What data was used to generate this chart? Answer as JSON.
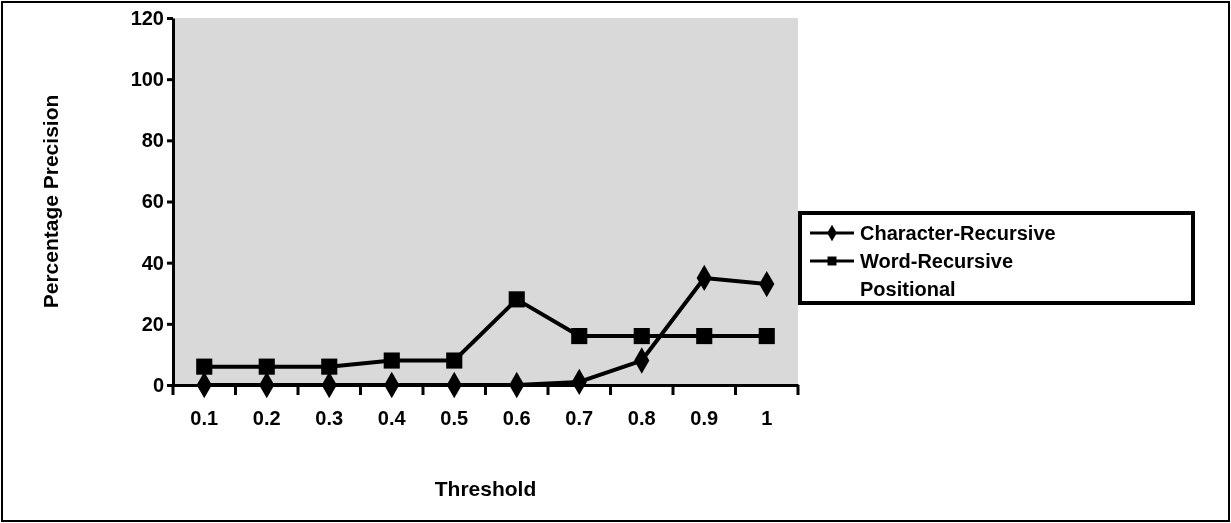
{
  "chart_data": {
    "type": "line",
    "xlabel": "Threshold",
    "ylabel": "Percentage Precision",
    "categories": [
      "0.1",
      "0.2",
      "0.3",
      "0.4",
      "0.5",
      "0.6",
      "0.7",
      "0.8",
      "0.9",
      "1"
    ],
    "ylim": [
      0,
      120
    ],
    "yticks": [
      0,
      20,
      40,
      60,
      80,
      100,
      120
    ],
    "legend": "right",
    "grid": false,
    "series": [
      {
        "name": "Character-Recursive",
        "color": "#000000",
        "marker": "diamond",
        "values": [
          0,
          0,
          0,
          0,
          0,
          0,
          1,
          8,
          35,
          33
        ]
      },
      {
        "name": "Word-Recursive",
        "color": "#000000",
        "marker": "square",
        "values": [
          6,
          6,
          6,
          8,
          8,
          28,
          16,
          16,
          16,
          16
        ]
      },
      {
        "name": "Positional",
        "marker": "none",
        "values": [
          null,
          null,
          null,
          null,
          null,
          null,
          null,
          null,
          null,
          null
        ]
      }
    ]
  }
}
